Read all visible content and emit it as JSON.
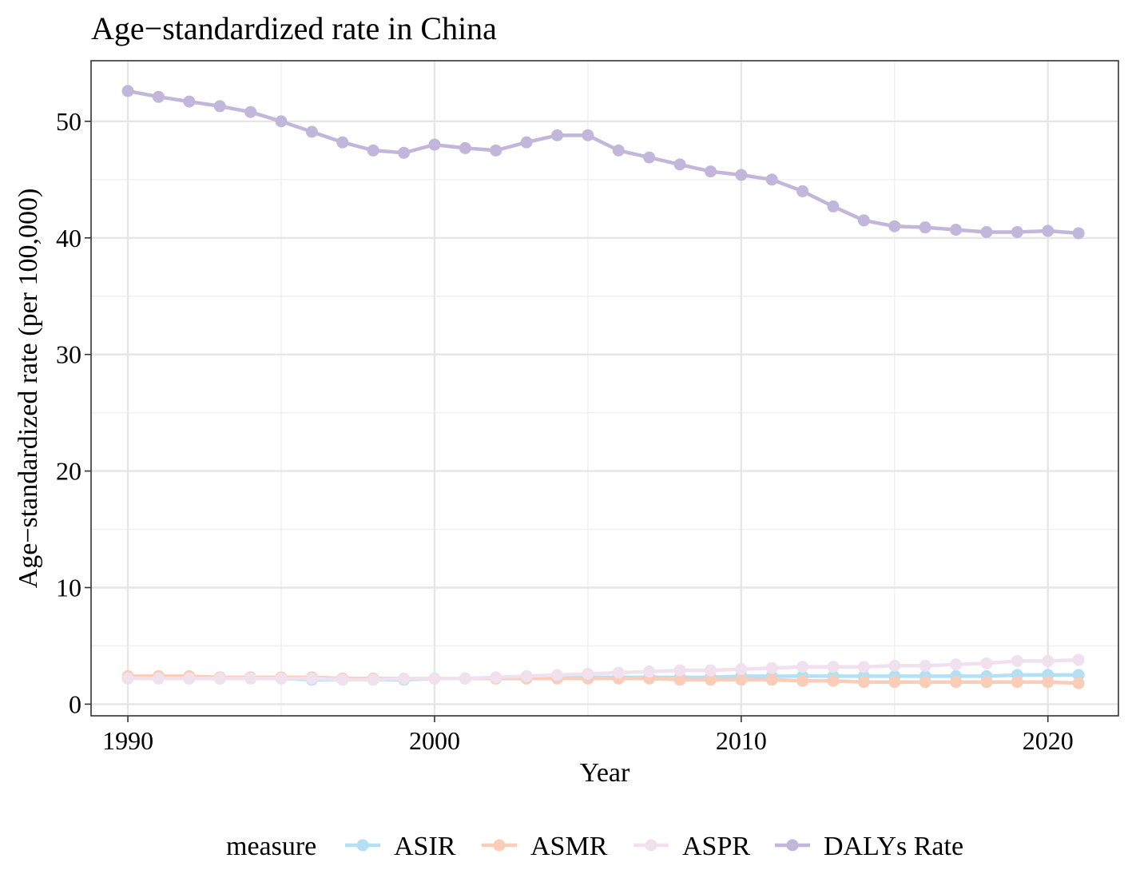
{
  "chart_data": {
    "type": "line",
    "title": "Age−standardized rate in China",
    "xlabel": "Year",
    "ylabel": "Age−standardized rate (per 100,000)",
    "xlim": [
      1988.8,
      2022.3
    ],
    "ylim": [
      -1.0,
      55.2
    ],
    "x_ticks": [
      1990,
      2000,
      2010,
      2020
    ],
    "y_ticks": [
      0,
      10,
      20,
      30,
      40,
      50
    ],
    "grid": true,
    "legend_position": "bottom",
    "legend_title": "measure",
    "x": [
      1990,
      1991,
      1992,
      1993,
      1994,
      1995,
      1996,
      1997,
      1998,
      1999,
      2000,
      2001,
      2002,
      2003,
      2004,
      2005,
      2006,
      2007,
      2008,
      2009,
      2010,
      2011,
      2012,
      2013,
      2014,
      2015,
      2016,
      2017,
      2018,
      2019,
      2020,
      2021
    ],
    "series": [
      {
        "name": "ASIR",
        "color": "#b3e0f5",
        "values": [
          2.2,
          2.2,
          2.2,
          2.2,
          2.2,
          2.2,
          2.1,
          2.1,
          2.1,
          2.1,
          2.2,
          2.2,
          2.2,
          2.2,
          2.3,
          2.3,
          2.3,
          2.3,
          2.3,
          2.3,
          2.4,
          2.4,
          2.4,
          2.4,
          2.4,
          2.4,
          2.4,
          2.4,
          2.4,
          2.5,
          2.5,
          2.5
        ]
      },
      {
        "name": "ASMR",
        "color": "#f9cdb8",
        "values": [
          2.4,
          2.4,
          2.4,
          2.3,
          2.3,
          2.3,
          2.3,
          2.2,
          2.2,
          2.2,
          2.2,
          2.2,
          2.2,
          2.2,
          2.2,
          2.2,
          2.2,
          2.2,
          2.1,
          2.1,
          2.1,
          2.1,
          2.0,
          2.0,
          1.9,
          1.9,
          1.9,
          1.9,
          1.9,
          1.9,
          1.9,
          1.8
        ]
      },
      {
        "name": "ASPR",
        "color": "#f1e0ee",
        "values": [
          2.2,
          2.2,
          2.2,
          2.2,
          2.2,
          2.2,
          2.2,
          2.1,
          2.1,
          2.2,
          2.2,
          2.2,
          2.3,
          2.4,
          2.5,
          2.6,
          2.7,
          2.8,
          2.9,
          2.9,
          3.0,
          3.1,
          3.2,
          3.2,
          3.2,
          3.3,
          3.3,
          3.4,
          3.5,
          3.7,
          3.7,
          3.8
        ]
      },
      {
        "name": "DALYs Rate",
        "color": "#c3b6db",
        "values": [
          52.6,
          52.1,
          51.7,
          51.3,
          50.8,
          50.0,
          49.1,
          48.2,
          47.5,
          47.3,
          48.0,
          47.7,
          47.5,
          48.2,
          48.8,
          48.8,
          47.5,
          46.9,
          46.3,
          45.7,
          45.4,
          45.0,
          44.0,
          42.7,
          41.5,
          41.0,
          40.9,
          40.7,
          40.5,
          40.5,
          40.6,
          40.4
        ]
      }
    ]
  }
}
